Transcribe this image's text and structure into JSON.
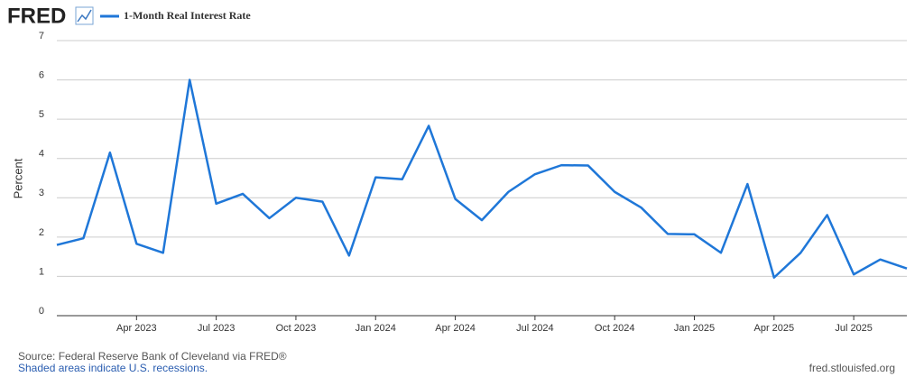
{
  "logo": "FRED",
  "footer": {
    "source": "Source: Federal Reserve Bank of Cleveland via FRED®",
    "note": "Shaded areas indicate U.S. recessions.",
    "site": "fred.stlouisfed.org"
  },
  "chart_data": {
    "type": "line",
    "ylabel": "Percent",
    "x": [
      "2023-01",
      "2023-02",
      "2023-03",
      "2023-04",
      "2023-05",
      "2023-06",
      "2023-07",
      "2023-08",
      "2023-09",
      "2023-10",
      "2023-11",
      "2023-12",
      "2024-01",
      "2024-02",
      "2024-03",
      "2024-04",
      "2024-05",
      "2024-06",
      "2024-07",
      "2024-08",
      "2024-09",
      "2024-10",
      "2024-11",
      "2024-12",
      "2025-01",
      "2025-02",
      "2025-03",
      "2025-04",
      "2025-05",
      "2025-06",
      "2025-07",
      "2025-08",
      "2025-09"
    ],
    "series": [
      {
        "name": "1-Month Real Interest Rate",
        "color": "#1f77d8",
        "values": [
          1.8,
          1.97,
          4.15,
          1.83,
          1.6,
          6.0,
          2.85,
          3.1,
          2.48,
          3.0,
          2.9,
          1.53,
          3.52,
          3.47,
          4.83,
          2.97,
          2.43,
          3.15,
          3.6,
          3.83,
          3.82,
          3.15,
          2.75,
          2.08,
          2.07,
          1.6,
          3.35,
          0.97,
          1.6,
          2.56,
          1.05,
          1.43,
          1.2
        ]
      }
    ],
    "xlim": [
      "2023-01",
      "2025-09"
    ],
    "xticks": [
      {
        "value": "2023-04",
        "label": "Apr 2023"
      },
      {
        "value": "2023-07",
        "label": "Jul 2023"
      },
      {
        "value": "2023-10",
        "label": "Oct 2023"
      },
      {
        "value": "2024-01",
        "label": "Jan 2024"
      },
      {
        "value": "2024-04",
        "label": "Apr 2024"
      },
      {
        "value": "2024-07",
        "label": "Jul 2024"
      },
      {
        "value": "2024-10",
        "label": "Oct 2024"
      },
      {
        "value": "2025-01",
        "label": "Jan 2025"
      },
      {
        "value": "2025-04",
        "label": "Apr 2025"
      },
      {
        "value": "2025-07",
        "label": "Jul 2025"
      }
    ],
    "ylim": [
      0,
      7
    ],
    "yticks": [
      0,
      1,
      2,
      3,
      4,
      5,
      6,
      7
    ],
    "grid": true
  }
}
